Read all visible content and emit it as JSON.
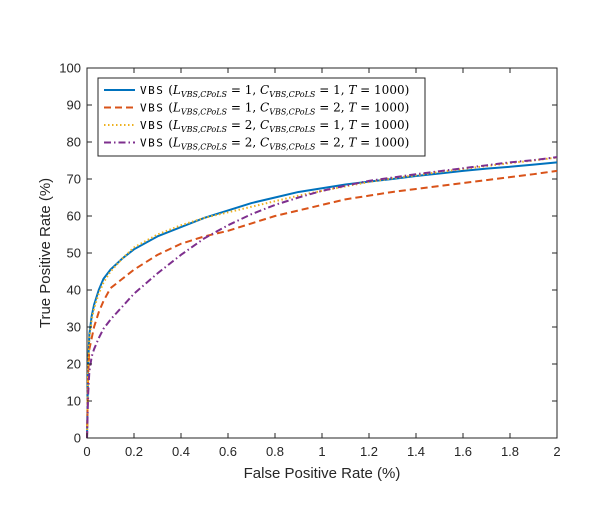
{
  "chart_data": {
    "type": "line",
    "title": "",
    "xlabel": "False Positive Rate (%)",
    "ylabel": "True Positive Rate (%)",
    "xlim": [
      0,
      2
    ],
    "ylim": [
      0,
      100
    ],
    "xticks": [
      0,
      0.2,
      0.4,
      0.6,
      0.8,
      1,
      1.2,
      1.4,
      1.6,
      1.8,
      2
    ],
    "xtick_labels": [
      "0",
      "0.2",
      "0.4",
      "0.6",
      "0.8",
      "1",
      "1.2",
      "1.4",
      "1.6",
      "1.8",
      "2"
    ],
    "yticks": [
      0,
      10,
      20,
      30,
      40,
      50,
      60,
      70,
      80,
      90,
      100
    ],
    "ytick_labels": [
      "0",
      "10",
      "20",
      "30",
      "40",
      "50",
      "60",
      "70",
      "80",
      "90",
      "100"
    ],
    "grid": false,
    "legend_position": "top-left",
    "series": [
      {
        "name": "VBS (L_VBS,CPoLS = 1, C_VBS,CPoLS = 1, T = 1000)",
        "legend": {
          "prefix": "VBS",
          "l": "1",
          "c": "1",
          "t": "1000"
        },
        "color": "#0072BD",
        "style": "solid",
        "x": [
          0,
          0.005,
          0.01,
          0.02,
          0.03,
          0.05,
          0.07,
          0.1,
          0.15,
          0.2,
          0.3,
          0.4,
          0.5,
          0.6,
          0.7,
          0.8,
          0.9,
          1.0,
          1.1,
          1.2,
          1.3,
          1.4,
          1.5,
          1.6,
          1.7,
          1.8,
          1.9,
          2.0
        ],
        "y": [
          0,
          20,
          28,
          33,
          36,
          40,
          43,
          45.5,
          48.5,
          51,
          54.5,
          57,
          59.5,
          61.5,
          63.5,
          65,
          66.5,
          67.5,
          68.5,
          69.3,
          70,
          70.8,
          71.5,
          72.2,
          72.8,
          73.3,
          73.9,
          74.5
        ]
      },
      {
        "name": "VBS (L_VBS,CPoLS = 1, C_VBS,CPoLS = 2, T = 1000)",
        "legend": {
          "prefix": "VBS",
          "l": "1",
          "c": "2",
          "t": "1000"
        },
        "color": "#D95319",
        "style": "dashed",
        "x": [
          0,
          0.005,
          0.01,
          0.02,
          0.03,
          0.05,
          0.07,
          0.1,
          0.15,
          0.2,
          0.3,
          0.4,
          0.5,
          0.6,
          0.7,
          0.8,
          0.9,
          1.0,
          1.1,
          1.2,
          1.3,
          1.4,
          1.5,
          1.6,
          1.7,
          1.8,
          1.9,
          2.0
        ],
        "y": [
          0,
          17,
          24,
          27,
          30,
          34,
          37,
          40.5,
          43,
          45.5,
          49.5,
          52.5,
          54.5,
          56,
          58,
          60,
          61.5,
          63,
          64.5,
          65.5,
          66.5,
          67.3,
          68.1,
          68.9,
          69.7,
          70.5,
          71.3,
          72.2
        ]
      },
      {
        "name": "VBS (L_VBS,CPoLS = 2, C_VBS,CPoLS = 1, T = 1000)",
        "legend": {
          "prefix": "VBS",
          "l": "2",
          "c": "1",
          "t": "1000"
        },
        "color": "#EDB120",
        "style": "dotted",
        "x": [
          0,
          0.005,
          0.01,
          0.02,
          0.03,
          0.05,
          0.07,
          0.1,
          0.15,
          0.2,
          0.3,
          0.4,
          0.5,
          0.6,
          0.7,
          0.8,
          0.9,
          1.0,
          1.1,
          1.2,
          1.3,
          1.4,
          1.5,
          1.6,
          1.7,
          1.8,
          1.9,
          2.0
        ],
        "y": [
          0,
          19,
          27,
          32,
          35,
          39,
          42,
          45,
          48.5,
          51.5,
          55,
          57.5,
          59.5,
          61,
          62.5,
          64,
          65.5,
          66.8,
          68,
          69.2,
          70.2,
          71,
          71.9,
          72.7,
          73.5,
          74.3,
          75,
          75.8
        ]
      },
      {
        "name": "VBS (L_VBS,CPoLS = 2, C_VBS,CPoLS = 2, T = 1000)",
        "legend": {
          "prefix": "VBS",
          "l": "2",
          "c": "2",
          "t": "1000"
        },
        "color": "#7E2F8E",
        "style": "dashdot",
        "x": [
          0,
          0.005,
          0.01,
          0.02,
          0.03,
          0.05,
          0.07,
          0.1,
          0.15,
          0.2,
          0.3,
          0.4,
          0.5,
          0.6,
          0.7,
          0.8,
          0.9,
          1.0,
          1.1,
          1.2,
          1.3,
          1.4,
          1.5,
          1.6,
          1.7,
          1.8,
          1.9,
          2.0
        ],
        "y": [
          0,
          12,
          18,
          22,
          24,
          27,
          29.5,
          32,
          35.5,
          39,
          44.5,
          49.5,
          54,
          57.5,
          60.5,
          63,
          65,
          66.8,
          68.2,
          69.5,
          70.4,
          71.3,
          72.1,
          72.9,
          73.7,
          74.5,
          75.1,
          75.9
        ]
      }
    ]
  }
}
